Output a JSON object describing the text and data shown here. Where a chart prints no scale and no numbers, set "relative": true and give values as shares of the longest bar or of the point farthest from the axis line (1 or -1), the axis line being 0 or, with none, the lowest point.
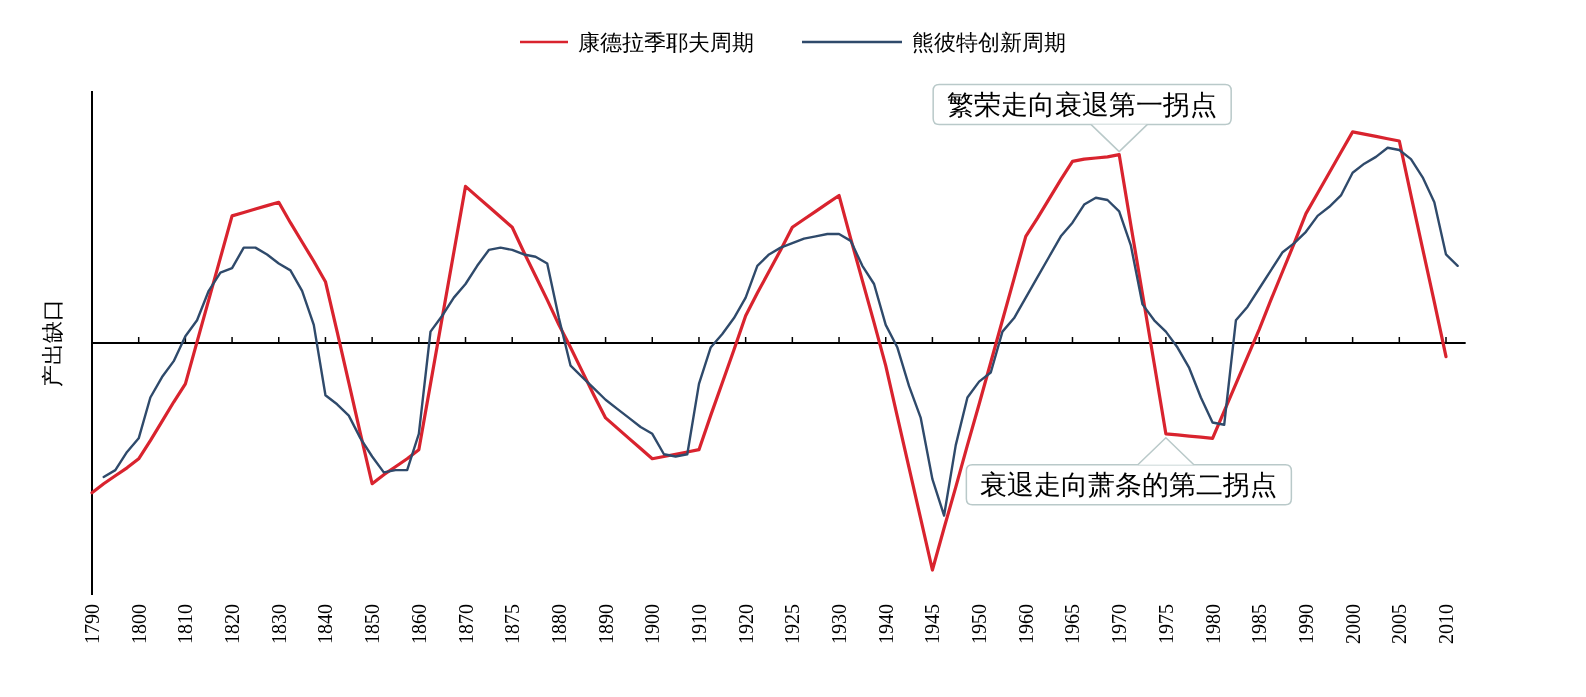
{
  "chart_data": {
    "type": "line",
    "relative": true,
    "ylabel": "产出缺口",
    "legend": "top",
    "categories": [
      "1790",
      null,
      null,
      null,
      "1800",
      null,
      null,
      null,
      "1810",
      null,
      null,
      null,
      "1820",
      null,
      null,
      null,
      "1830",
      null,
      null,
      null,
      "1840",
      null,
      null,
      null,
      "1850",
      null,
      null,
      null,
      "1860",
      null,
      null,
      null,
      "1870",
      null,
      null,
      null,
      "1875",
      null,
      null,
      null,
      "1880",
      null,
      null,
      null,
      "1890",
      null,
      null,
      null,
      "1900",
      null,
      null,
      null,
      "1910",
      null,
      null,
      null,
      "1920",
      null,
      null,
      null,
      "1925",
      null,
      null,
      null,
      "1930",
      null,
      null,
      null,
      "1940",
      null,
      null,
      null,
      "1945",
      null,
      null,
      null,
      "1950",
      null,
      null,
      null,
      "1960",
      null,
      null,
      null,
      "1965",
      null,
      null,
      null,
      "1970",
      null,
      null,
      null,
      "1975",
      null,
      null,
      null,
      "1980",
      null,
      null,
      null,
      "1985",
      null,
      null,
      null,
      "1990",
      null,
      null,
      null,
      "2000",
      null,
      null,
      null,
      "2005",
      null,
      null,
      null,
      "2010",
      null
    ],
    "series": [
      {
        "name": "康德拉季耶夫周期",
        "color": "#d9232e",
        "values": [
          -0.66,
          -0.62,
          -0.585,
          -0.55,
          -0.51,
          -0.43,
          -0.345,
          -0.26,
          -0.18,
          0.005,
          0.19,
          0.375,
          0.56,
          0.575,
          0.59,
          0.605,
          0.62,
          0.53,
          0.445,
          0.36,
          0.27,
          0.05,
          -0.175,
          -0.4,
          -0.62,
          -0.58,
          -0.545,
          -0.51,
          -0.47,
          -0.18,
          0.11,
          0.4,
          0.69,
          0.645,
          0.6,
          0.555,
          0.51,
          0.4,
          0.295,
          0.19,
          0.08,
          -0.02,
          -0.125,
          -0.23,
          -0.33,
          -0.375,
          -0.42,
          -0.465,
          -0.51,
          -0.5,
          -0.49,
          -0.48,
          -0.47,
          -0.32,
          -0.175,
          -0.03,
          0.12,
          0.22,
          0.315,
          0.41,
          0.51,
          0.545,
          0.58,
          0.615,
          0.65,
          0.46,
          0.275,
          0.09,
          -0.1,
          -0.325,
          -0.55,
          -0.775,
          -1,
          -0.815,
          -0.635,
          -0.45,
          -0.27,
          -0.085,
          0.1,
          0.285,
          0.47,
          0.55,
          0.635,
          0.72,
          0.8,
          0.81,
          0.815,
          0.82,
          0.83,
          0.52,
          0.215,
          -0.09,
          -0.4,
          -0.405,
          -0.41,
          -0.415,
          -0.42,
          -0.3,
          -0.18,
          -0.06,
          0.06,
          0.19,
          0.315,
          0.44,
          0.57,
          0.66,
          0.75,
          0.84,
          0.93,
          0.92,
          0.91,
          0.9,
          0.89,
          0.65,
          0.415,
          0.18,
          -0.06,
          null
        ]
      },
      {
        "name": "熊彼特创新周期",
        "color": "#2f4a6b",
        "values": [
          null,
          -0.59,
          -0.56,
          -0.48,
          -0.42,
          -0.24,
          -0.15,
          -0.08,
          0.03,
          0.1,
          0.23,
          0.31,
          0.33,
          0.42,
          0.42,
          0.39,
          0.35,
          0.32,
          0.23,
          0.08,
          -0.23,
          -0.27,
          -0.32,
          -0.42,
          -0.5,
          -0.57,
          -0.56,
          -0.56,
          -0.4,
          0.05,
          0.12,
          0.2,
          0.26,
          0.34,
          0.41,
          0.42,
          0.41,
          0.39,
          0.38,
          0.35,
          0.11,
          -0.1,
          -0.15,
          -0.2,
          -0.25,
          -0.29,
          -0.33,
          -0.37,
          -0.4,
          -0.49,
          -0.5,
          -0.49,
          -0.18,
          -0.02,
          0.04,
          0.11,
          0.2,
          0.34,
          0.39,
          0.42,
          0.44,
          0.46,
          0.47,
          0.48,
          0.48,
          0.45,
          0.34,
          0.26,
          0.08,
          -0.02,
          -0.19,
          -0.33,
          -0.6,
          -0.76,
          -0.45,
          -0.24,
          -0.17,
          -0.13,
          0.05,
          0.11,
          0.2,
          0.29,
          0.38,
          0.47,
          0.53,
          0.61,
          0.64,
          0.63,
          0.58,
          0.43,
          0.17,
          0.1,
          0.05,
          -0.02,
          -0.11,
          -0.24,
          -0.35,
          -0.36,
          0.1,
          0.16,
          0.24,
          0.32,
          0.4,
          0.44,
          0.49,
          0.56,
          0.6,
          0.65,
          0.75,
          0.79,
          0.82,
          0.86,
          0.85,
          0.81,
          0.73,
          0.62,
          0.39,
          0.34
        ]
      }
    ],
    "annotations": [
      {
        "text": "繁荣走向衰退第一拐点",
        "x": "1970",
        "y": 0.83
      },
      {
        "text": "衰退走向萧条的第二拐点",
        "x": "1975",
        "y": -0.4
      }
    ]
  }
}
